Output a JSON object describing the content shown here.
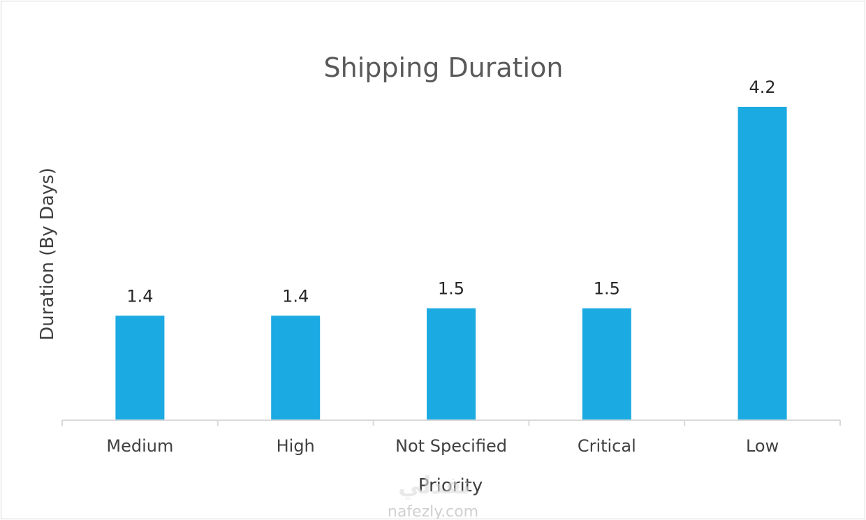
{
  "chart_data": {
    "type": "bar",
    "title": "Shipping Duration",
    "xlabel": "Priority",
    "ylabel": "Duration (By Days)",
    "categories": [
      "Medium",
      "High",
      "Not Specified",
      "Critical",
      "Low"
    ],
    "values": [
      1.4,
      1.4,
      1.5,
      1.5,
      4.2
    ],
    "data_labels": [
      "1.4",
      "1.4",
      "1.5",
      "1.5",
      "4.2"
    ],
    "ylim": [
      0,
      4.2
    ],
    "grid": false,
    "legend": "none",
    "bar_color": "#1BAAE2"
  },
  "watermark": {
    "logo_text": "نفذلي",
    "site": "nafezly.com"
  }
}
